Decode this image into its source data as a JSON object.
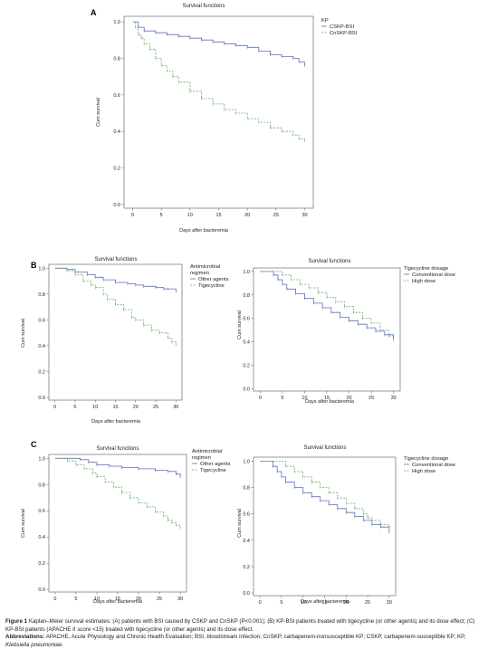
{
  "panel_labels": [
    "A",
    "B",
    "C"
  ],
  "chart_data": [
    {
      "id": "A",
      "type": "line",
      "step": true,
      "title": "Survival functions",
      "xlabel": "Days after bacteremia",
      "ylabel": "Cum survival",
      "xticks": [
        0,
        5,
        10,
        15,
        20,
        25,
        30
      ],
      "yticks": [
        0.0,
        0.2,
        0.4,
        0.6,
        0.8,
        1.0
      ],
      "xlim": [
        -1.5,
        31.5
      ],
      "ylim": [
        -0.02,
        1.03
      ],
      "legend": {
        "title": [
          "KP"
        ],
        "position": "right"
      },
      "series": [
        {
          "name": "CSKP-BSI",
          "color": "#5b6fc0",
          "dashed": false,
          "x": [
            0,
            1,
            2,
            4,
            6,
            8,
            10,
            12,
            14,
            16,
            18,
            20,
            22,
            24,
            26,
            28,
            29,
            30
          ],
          "y": [
            1.0,
            0.97,
            0.95,
            0.94,
            0.93,
            0.92,
            0.91,
            0.9,
            0.89,
            0.88,
            0.87,
            0.86,
            0.84,
            0.82,
            0.81,
            0.8,
            0.78,
            0.76
          ]
        },
        {
          "name": "CnSKP-BSI",
          "color": "#5fae5f",
          "dashed": true,
          "x": [
            0,
            0.5,
            1,
            1.5,
            2,
            3,
            4,
            5,
            6,
            7,
            8,
            10,
            12,
            14,
            16,
            18,
            20,
            22,
            24,
            26,
            28,
            29,
            30
          ],
          "y": [
            1.0,
            0.97,
            0.93,
            0.91,
            0.88,
            0.85,
            0.8,
            0.76,
            0.73,
            0.7,
            0.67,
            0.62,
            0.58,
            0.55,
            0.52,
            0.5,
            0.47,
            0.45,
            0.42,
            0.4,
            0.38,
            0.36,
            0.35
          ]
        }
      ]
    },
    {
      "id": "B-left",
      "type": "line",
      "step": true,
      "title": "Survival functions",
      "xlabel": "Days after bacteremia",
      "ylabel": "Cum survival",
      "xticks": [
        0,
        5,
        10,
        15,
        20,
        25,
        30
      ],
      "yticks": [
        0.0,
        0.2,
        0.4,
        0.6,
        0.8,
        1.0
      ],
      "xlim": [
        -1.5,
        31.5
      ],
      "ylim": [
        -0.02,
        1.03
      ],
      "legend": {
        "title": [
          "Antimicrobial",
          "regimen"
        ],
        "position": "right"
      },
      "series": [
        {
          "name": "Other agents",
          "color": "#5b6fc0",
          "dashed": false,
          "x": [
            0,
            3,
            5,
            8,
            10,
            12,
            15,
            18,
            20,
            22,
            25,
            27,
            28,
            30
          ],
          "y": [
            1.0,
            0.99,
            0.97,
            0.95,
            0.93,
            0.91,
            0.89,
            0.88,
            0.87,
            0.86,
            0.85,
            0.84,
            0.84,
            0.82
          ]
        },
        {
          "name": "Tigecycline",
          "color": "#5fae5f",
          "dashed": true,
          "x": [
            0,
            3,
            5,
            7,
            9,
            10,
            12,
            13,
            15,
            17,
            19,
            20,
            22,
            24,
            26,
            28,
            29,
            30
          ],
          "y": [
            1.0,
            0.98,
            0.95,
            0.9,
            0.87,
            0.85,
            0.8,
            0.76,
            0.72,
            0.68,
            0.62,
            0.6,
            0.56,
            0.52,
            0.5,
            0.46,
            0.43,
            0.41
          ]
        }
      ]
    },
    {
      "id": "B-right",
      "type": "line",
      "step": true,
      "title": "Survival functions",
      "xlabel": "Days after bacteremia",
      "ylabel": "Cum survival",
      "xticks": [
        0,
        5,
        10,
        15,
        20,
        25,
        30
      ],
      "yticks": [
        0.0,
        0.2,
        0.4,
        0.6,
        0.8,
        1.0
      ],
      "xlim": [
        -1.5,
        31.5
      ],
      "ylim": [
        -0.02,
        1.03
      ],
      "legend": {
        "title": [
          "Tigecycline dosage"
        ],
        "position": "right"
      },
      "series": [
        {
          "name": "Conventional dose",
          "color": "#5b6fc0",
          "dashed": false,
          "x": [
            0,
            3,
            4,
            5,
            6,
            8,
            10,
            12,
            14,
            16,
            18,
            20,
            22,
            24,
            26,
            28,
            30
          ],
          "y": [
            1.0,
            0.97,
            0.93,
            0.89,
            0.85,
            0.81,
            0.77,
            0.73,
            0.69,
            0.65,
            0.61,
            0.58,
            0.55,
            0.52,
            0.49,
            0.46,
            0.42
          ]
        },
        {
          "name": "High dose",
          "color": "#5fae5f",
          "dashed": true,
          "x": [
            0,
            5,
            7,
            9,
            11,
            13,
            15,
            17,
            19,
            21,
            23,
            25,
            27,
            29,
            30
          ],
          "y": [
            1.0,
            0.97,
            0.93,
            0.89,
            0.86,
            0.82,
            0.78,
            0.74,
            0.7,
            0.65,
            0.6,
            0.56,
            0.5,
            0.45,
            0.42
          ]
        }
      ]
    },
    {
      "id": "C-left",
      "type": "line",
      "step": true,
      "title": "Survival functions",
      "xlabel": "Days after bacteremia",
      "ylabel": "Cum survival",
      "xticks": [
        0,
        5,
        10,
        15,
        20,
        25,
        30
      ],
      "yticks": [
        0.0,
        0.2,
        0.4,
        0.6,
        0.8,
        1.0
      ],
      "xlim": [
        -1.5,
        31.5
      ],
      "ylim": [
        -0.02,
        1.03
      ],
      "legend": {
        "title": [
          "Antimicrobial",
          "regimen"
        ],
        "position": "right"
      },
      "series": [
        {
          "name": "Other agents",
          "color": "#5b6fc0",
          "dashed": false,
          "x": [
            0,
            6,
            8,
            10,
            13,
            16,
            20,
            24,
            27,
            29,
            30
          ],
          "y": [
            1.0,
            0.99,
            0.97,
            0.95,
            0.94,
            0.93,
            0.92,
            0.91,
            0.9,
            0.88,
            0.86
          ]
        },
        {
          "name": "Tigecycline",
          "color": "#5fae5f",
          "dashed": true,
          "x": [
            0,
            3,
            5,
            7,
            9,
            10,
            12,
            14,
            16,
            18,
            20,
            22,
            24,
            26,
            27,
            28,
            29,
            30
          ],
          "y": [
            1.0,
            0.98,
            0.95,
            0.92,
            0.89,
            0.86,
            0.82,
            0.78,
            0.74,
            0.7,
            0.66,
            0.63,
            0.59,
            0.56,
            0.53,
            0.51,
            0.49,
            0.47
          ]
        }
      ]
    },
    {
      "id": "C-right",
      "type": "line",
      "step": true,
      "title": "Survival functions",
      "xlabel": "Days after bacteremia",
      "ylabel": "Cum survival",
      "xticks": [
        0,
        5,
        10,
        15,
        20,
        25,
        30
      ],
      "yticks": [
        0.0,
        0.2,
        0.4,
        0.6,
        0.8,
        1.0
      ],
      "xlim": [
        -1.5,
        31.5
      ],
      "ylim": [
        -0.02,
        1.03
      ],
      "legend": {
        "title": [
          "Tigecycline dosage"
        ],
        "position": "right"
      },
      "series": [
        {
          "name": "Conventional dose",
          "color": "#5b6fc0",
          "dashed": false,
          "x": [
            0,
            3,
            4,
            5,
            6,
            8,
            10,
            12,
            14,
            16,
            18,
            20,
            22,
            24,
            26,
            28,
            30
          ],
          "y": [
            1.0,
            0.96,
            0.92,
            0.88,
            0.84,
            0.8,
            0.76,
            0.73,
            0.7,
            0.67,
            0.64,
            0.61,
            0.58,
            0.55,
            0.52,
            0.5,
            0.46
          ]
        },
        {
          "name": "High dose",
          "color": "#5fae5f",
          "dashed": true,
          "x": [
            0,
            6,
            8,
            10,
            12,
            14,
            16,
            18,
            20,
            22,
            24,
            25,
            26,
            28,
            30
          ],
          "y": [
            1.0,
            0.96,
            0.92,
            0.88,
            0.84,
            0.8,
            0.76,
            0.72,
            0.68,
            0.64,
            0.6,
            0.57,
            0.55,
            0.52,
            0.5
          ]
        }
      ]
    }
  ],
  "caption": {
    "fig_label": "Figure 1",
    "line1": "Kaplan–Meier survival estimates: (A) patients with BSI caused by CSKP and CnSKP (P<0.001); (B) KP-BSI patients treated with tigecycline (or other agents) and its dose effect; (C) KP-BSI patients (APACHE II score <15) treated with tigecycline (or other agents) and its dose effect.",
    "abbr_label": "Abbreviations:",
    "abbr_text": "APACHE, Acute Physiology and Chronic Health Evaluation; BSI, bloodstream infection; CnSKP, carbapenem-nonsusceptible KP; CSKP, carbapenem-susceptible KP; KP,",
    "abbr_italic": "Klebsiella pneumoniae",
    "abbr_end": "."
  }
}
